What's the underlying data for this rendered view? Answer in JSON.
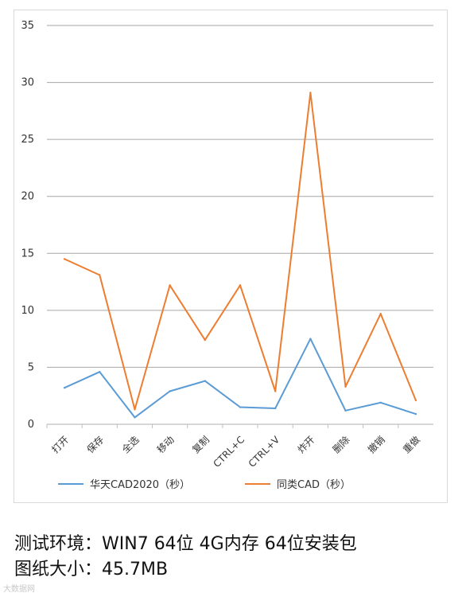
{
  "chart_data": {
    "type": "line",
    "categories": [
      "打开",
      "保存",
      "全选",
      "移动",
      "复制",
      "CTRL+C",
      "CTRL+V",
      "炸开",
      "删除",
      "撤销",
      "重做"
    ],
    "series": [
      {
        "name": "华天CAD2020（秒）",
        "color": "#5b9bd5",
        "values": [
          3.2,
          4.6,
          0.6,
          2.9,
          3.8,
          1.5,
          1.4,
          7.5,
          1.2,
          1.9,
          0.9
        ]
      },
      {
        "name": "同类CAD（秒）",
        "color": "#ed7d31",
        "values": [
          14.5,
          13.1,
          1.3,
          12.2,
          7.4,
          12.2,
          2.9,
          29.1,
          3.3,
          9.7,
          2.1
        ]
      }
    ],
    "ylim": [
      0,
      35
    ],
    "yticks": [
      0,
      5,
      10,
      15,
      20,
      25,
      30,
      35
    ],
    "grid": true,
    "legend": "bottom",
    "title": "",
    "xlabel": "",
    "ylabel": ""
  },
  "caption": {
    "line1": "测试环境：WIN7 64位 4G内存 64位安装包",
    "line2": "图纸大小：45.7MB"
  },
  "watermark": "大数据网"
}
